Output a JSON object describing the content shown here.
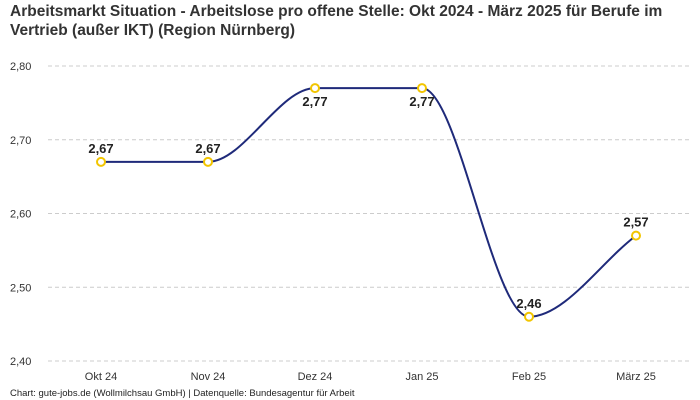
{
  "chart_data": {
    "type": "line",
    "title": "Arbeitsmarkt Situation - Arbeitslose pro offene Stelle: Okt 2024 - März 2025 für Berufe im Vertrieb (außer IKT) (Region Nürnberg)",
    "categories": [
      "Okt 24",
      "Nov 24",
      "Dez 24",
      "Jan 25",
      "Feb 25",
      "März 25"
    ],
    "series": [
      {
        "values": [
          2.67,
          2.67,
          2.77,
          2.77,
          2.46,
          2.57
        ],
        "labels": [
          "2,67",
          "2,67",
          "2,77",
          "2,77",
          "2,46",
          "2,57"
        ]
      }
    ],
    "yticks": [
      2.4,
      2.5,
      2.6,
      2.7,
      2.8
    ],
    "ytick_labels": [
      "2,40",
      "2,50",
      "2,60",
      "2,70",
      "2,80"
    ],
    "ylim": [
      2.4,
      2.8
    ],
    "grid": true,
    "line_color": "#1f2a7a",
    "marker_color": "#f2c500",
    "grid_color": "#cccccc"
  },
  "footer": "Chart: gute-jobs.de (Wollmilchsau GmbH) | Datenquelle: Bundesagentur für Arbeit"
}
